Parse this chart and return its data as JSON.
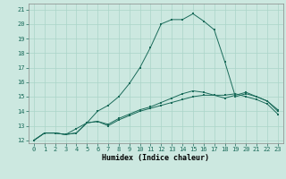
{
  "title": "",
  "xlabel": "Humidex (Indice chaleur)",
  "background_color": "#cce8e0",
  "grid_color": "#aad4c8",
  "line_color": "#1a6b5a",
  "xlim": [
    -0.5,
    23.5
  ],
  "ylim": [
    11.8,
    21.4
  ],
  "yticks": [
    12,
    13,
    14,
    15,
    16,
    17,
    18,
    19,
    20,
    21
  ],
  "xticks": [
    0,
    1,
    2,
    3,
    4,
    5,
    6,
    7,
    8,
    9,
    10,
    11,
    12,
    13,
    14,
    15,
    16,
    17,
    18,
    19,
    20,
    21,
    22,
    23
  ],
  "line1_x": [
    0,
    1,
    2,
    3,
    4,
    5,
    6,
    7,
    8,
    9,
    10,
    11,
    12,
    13,
    14,
    15,
    16,
    17,
    18,
    19,
    20,
    21,
    22,
    23
  ],
  "line1_y": [
    12.0,
    12.5,
    12.5,
    12.4,
    12.5,
    13.2,
    13.3,
    13.0,
    13.4,
    13.7,
    14.0,
    14.2,
    14.4,
    14.6,
    14.8,
    15.0,
    15.1,
    15.1,
    15.1,
    15.2,
    15.0,
    14.8,
    14.5,
    13.8
  ],
  "line2_x": [
    0,
    1,
    2,
    3,
    4,
    5,
    6,
    7,
    8,
    9,
    10,
    11,
    12,
    13,
    14,
    15,
    16,
    17,
    18,
    19,
    20,
    21,
    22,
    23
  ],
  "line2_y": [
    12.0,
    12.5,
    12.5,
    12.4,
    12.5,
    13.2,
    13.3,
    13.1,
    13.5,
    13.8,
    14.1,
    14.3,
    14.6,
    14.9,
    15.2,
    15.4,
    15.3,
    15.1,
    14.9,
    15.1,
    15.3,
    15.0,
    14.7,
    14.0
  ],
  "line3_x": [
    0,
    1,
    2,
    3,
    4,
    5,
    6,
    7,
    8,
    9,
    10,
    11,
    12,
    13,
    14,
    15,
    16,
    17,
    18,
    19,
    20,
    21,
    22,
    23
  ],
  "line3_y": [
    12.0,
    12.5,
    12.5,
    12.4,
    12.8,
    13.2,
    14.0,
    14.4,
    15.0,
    15.9,
    17.0,
    18.4,
    20.0,
    20.3,
    20.3,
    20.7,
    20.2,
    19.6,
    17.4,
    15.0,
    15.2,
    15.0,
    14.7,
    14.1
  ],
  "tick_fontsize": 5.0,
  "xlabel_fontsize": 6.0,
  "xlabel_bold": true
}
